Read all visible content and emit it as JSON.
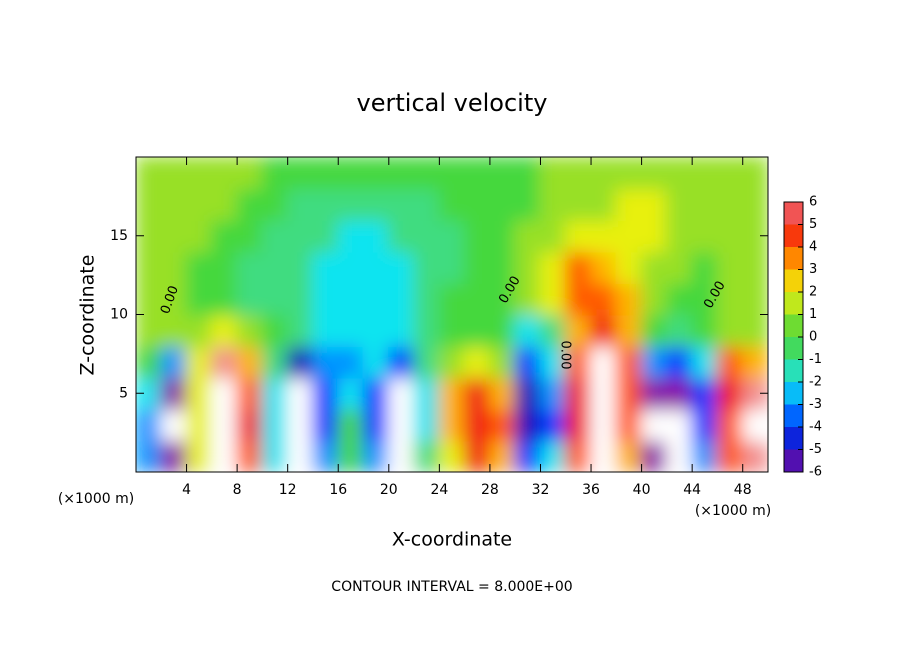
{
  "chart_data": {
    "type": "contour",
    "title": "vertical velocity",
    "x_label": "X-coordinate",
    "y_label": "Z-coordinate",
    "x_unit": "(×1000 m)",
    "y_unit": "(×1000 m)",
    "footer": "CONTOUR INTERVAL = 8.000E+00",
    "contour_label": "0.00",
    "xlim": [
      0,
      50
    ],
    "xticks": [
      4,
      8,
      12,
      16,
      20,
      24,
      28,
      32,
      36,
      40,
      44,
      48
    ],
    "ylim": [
      0,
      20
    ],
    "yticks": [
      5,
      10,
      15
    ],
    "x": [
      1,
      3,
      5,
      7,
      9,
      11,
      13,
      15,
      17,
      19,
      21,
      23,
      25,
      27,
      29,
      31,
      33,
      35,
      37,
      39,
      41,
      43,
      45,
      47,
      49
    ],
    "y": [
      1,
      3,
      5,
      7,
      9,
      11,
      13,
      15,
      17,
      19
    ],
    "z": [
      [
        -3,
        -6,
        2,
        7,
        4,
        -2,
        -7,
        -3,
        0,
        -3,
        -7,
        -1,
        2,
        5,
        3,
        -4,
        -2,
        4,
        7,
        3,
        -6,
        -7,
        -3,
        4,
        6
      ],
      [
        -3,
        -7,
        2,
        7,
        5,
        -2,
        -7,
        -4,
        0,
        -4,
        -7,
        -2,
        3,
        5,
        4,
        -5,
        -4,
        5,
        7,
        4,
        -7,
        -7,
        -4,
        4,
        7
      ],
      [
        -2,
        -6,
        2,
        7,
        4,
        -2,
        -7,
        -4,
        -2,
        -4,
        -7,
        -2,
        3,
        5,
        3,
        -5,
        -3,
        5,
        7,
        4,
        -6,
        -6,
        -4,
        5,
        6
      ],
      [
        0,
        -3,
        2,
        6,
        3,
        -1,
        -5,
        -3,
        -3,
        -2,
        -4,
        -1,
        1,
        2,
        1,
        -4,
        -2,
        4,
        7,
        4,
        -3,
        -4,
        -2,
        4,
        3
      ],
      [
        1,
        1,
        1,
        2,
        1,
        0,
        -1,
        -2,
        -2,
        -2,
        -2,
        -1,
        0,
        0,
        0,
        -2,
        -1,
        3,
        5,
        3,
        0,
        -1,
        0,
        1,
        1
      ],
      [
        1,
        1,
        0,
        0,
        -1,
        -1,
        -1,
        -2,
        -2,
        -2,
        -2,
        -1,
        0,
        0,
        0,
        1,
        2,
        4,
        4,
        3,
        1,
        0,
        0,
        1,
        1
      ],
      [
        1,
        1,
        0,
        0,
        -1,
        -1,
        -1,
        -2,
        -2,
        -2,
        -2,
        -1,
        -1,
        0,
        0,
        1,
        2,
        4,
        3,
        2,
        1,
        1,
        0,
        1,
        1
      ],
      [
        1,
        1,
        1,
        0,
        0,
        -1,
        -1,
        -1,
        -2,
        -2,
        -1,
        -1,
        -1,
        0,
        0,
        1,
        1,
        2,
        2,
        2,
        2,
        1,
        1,
        1,
        1
      ],
      [
        1,
        1,
        1,
        1,
        0,
        0,
        -1,
        -1,
        -1,
        -1,
        -1,
        -1,
        0,
        0,
        0,
        0,
        1,
        1,
        1,
        2,
        2,
        1,
        1,
        1,
        1
      ],
      [
        1,
        1,
        1,
        1,
        1,
        0,
        0,
        0,
        0,
        0,
        0,
        0,
        0,
        0,
        0,
        0,
        1,
        1,
        1,
        1,
        1,
        1,
        1,
        1,
        1
      ]
    ],
    "colorbar_ticks": [
      -6,
      -5,
      -4,
      -3,
      -2,
      -1,
      0,
      1,
      2,
      3,
      4,
      5,
      6
    ],
    "colors": [
      "#8a10a8",
      "#1a10b8",
      "#0038ff",
      "#0094ff",
      "#10e4f0",
      "#40dc80",
      "#44d83c",
      "#98e028",
      "#e8f010",
      "#ffb400",
      "#ff5a00",
      "#f01818",
      "#f29090"
    ]
  }
}
